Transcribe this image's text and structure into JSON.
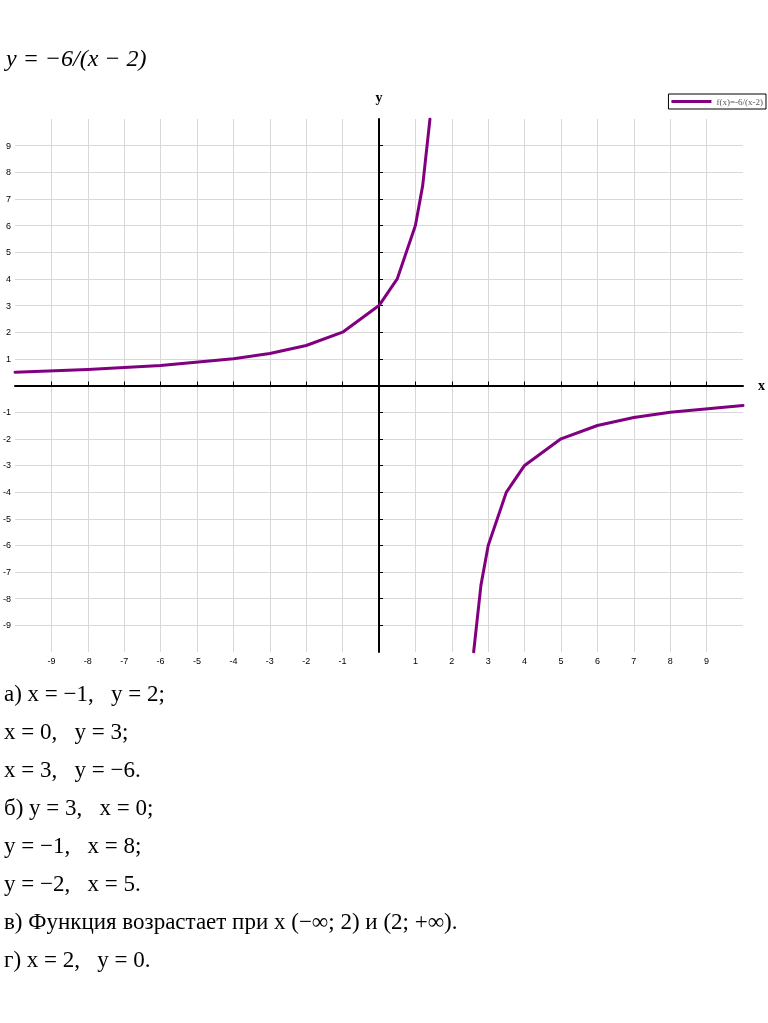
{
  "chart_data": {
    "type": "line",
    "title": "y = −6/(x − 2)",
    "xlabel": "x",
    "ylabel": "y",
    "x": [
      -10,
      -8,
      -6,
      -4,
      -3,
      -2,
      -1,
      0,
      0.5,
      1,
      1.2,
      1.4,
      2,
      2.6,
      2.8,
      3,
      3.5,
      4,
      5,
      6,
      7,
      8,
      10
    ],
    "series": [
      {
        "name": "f(x)=-6/(x-2)",
        "color": "#800080",
        "values": [
          0.5,
          0.6,
          0.75,
          1,
          1.2,
          1.5,
          2,
          3,
          4,
          6,
          7.5,
          10,
          null,
          -10,
          -7.5,
          -6,
          -4,
          -3,
          -2,
          -1.5,
          -1.2,
          -1,
          -0.75
        ]
      }
    ],
    "xlim": [
      -10,
      10
    ],
    "ylim": [
      -10,
      10
    ],
    "xticks": [
      -9,
      -8,
      -7,
      -6,
      -5,
      -4,
      -3,
      -2,
      -1,
      {
        "value": 0,
        "label": null
      },
      1,
      2,
      3,
      4,
      5,
      6,
      7,
      8,
      9
    ],
    "yticks": [
      -9,
      -8,
      -7,
      -6,
      -5,
      -4,
      -3,
      -2,
      -1,
      {
        "value": 0,
        "label": null
      },
      1,
      2,
      3,
      4,
      5,
      6,
      7,
      8,
      9
    ],
    "grid": true,
    "legend": "top right",
    "line_style": "solid",
    "annotations": [
      "а) x = −1,   y = 2;",
      "x = 0,   y = 3;",
      "x = 3,   y = −6.",
      "б) y = 3,   x = 0;",
      "y = −1,   x = 8;",
      "y = −2,   x = 5.",
      "в) Функция возрастает при x (−∞; 2) и (2; +∞).",
      "г) x = 2,   y = 0."
    ]
  }
}
